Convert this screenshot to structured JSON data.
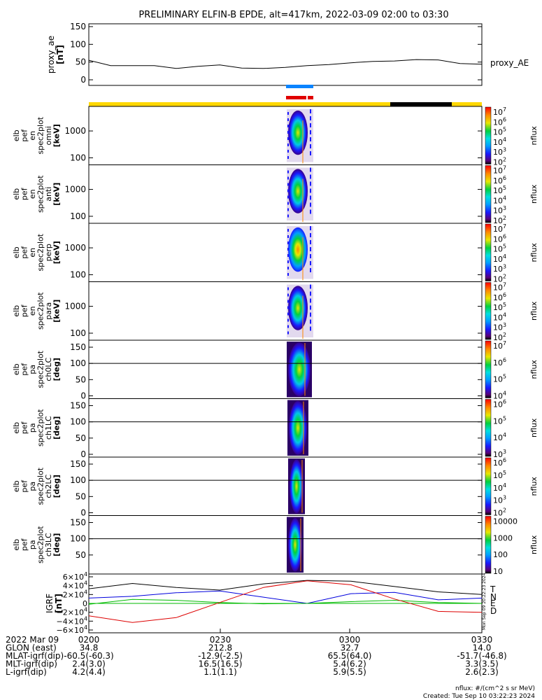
{
  "title": "PRELIMINARY ELFIN-B EPDE, alt=417km, 2022-03-09 02:00 to 03:30",
  "ae_panel": {
    "ylabel": [
      "proxy_ae",
      "[nT]"
    ],
    "series_label": "proxy_AE",
    "yticks": [
      "150",
      "100",
      "50",
      "0"
    ],
    "ylim": [
      0,
      150
    ]
  },
  "spec_panels": [
    {
      "ylabel": [
        "elb",
        "pef",
        "en",
        "spec2plot",
        "omni",
        "[keV]"
      ],
      "yticks": [
        "1000",
        "100"
      ],
      "kind": "energy"
    },
    {
      "ylabel": [
        "elb",
        "pef",
        "en",
        "spec2plot",
        "anti",
        "[keV]"
      ],
      "yticks": [
        "1000",
        "100"
      ],
      "kind": "energy"
    },
    {
      "ylabel": [
        "elb",
        "pef",
        "en",
        "spec2plot",
        "perp",
        "[keV]"
      ],
      "yticks": [
        "1000",
        "100"
      ],
      "kind": "energy"
    },
    {
      "ylabel": [
        "elb",
        "pef",
        "en",
        "spec2plot",
        "para",
        "[keV]"
      ],
      "yticks": [
        "1000",
        "100"
      ],
      "kind": "energy"
    },
    {
      "ylabel": [
        "elb",
        "pef",
        "pa",
        "spec2plot",
        "ch0LC",
        "[deg]"
      ],
      "yticks": [
        "150",
        "100",
        "50",
        "0"
      ],
      "kind": "pa"
    },
    {
      "ylabel": [
        "elb",
        "pef",
        "pa",
        "spec2plot",
        "ch1LC",
        "[deg]"
      ],
      "yticks": [
        "150",
        "100",
        "50",
        "0"
      ],
      "kind": "pa"
    },
    {
      "ylabel": [
        "elb",
        "pef",
        "pa",
        "spec2plot",
        "ch2LC",
        "[deg]"
      ],
      "yticks": [
        "150",
        "100",
        "50",
        "0"
      ],
      "kind": "pa"
    },
    {
      "ylabel": [
        "elb",
        "pef",
        "pa",
        "spec2plot",
        "ch3LC",
        "[deg]"
      ],
      "yticks": [
        "150",
        "100",
        "50"
      ],
      "kind": "pa"
    }
  ],
  "colorbars": [
    {
      "unit": "nflux",
      "labels": [
        "10^7",
        "10^6",
        "10^5",
        "10^4",
        "10^3",
        "10^2"
      ]
    },
    {
      "unit": "nflux",
      "labels": [
        "10^7",
        "10^6",
        "10^5",
        "10^4",
        "10^3",
        "10^2"
      ]
    },
    {
      "unit": "nflux",
      "labels": [
        "10^7",
        "10^6",
        "10^5",
        "10^4",
        "10^3",
        "10^2"
      ]
    },
    {
      "unit": "nflux",
      "labels": [
        "10^7",
        "10^6",
        "10^5",
        "10^4",
        "10^3",
        "10^2"
      ]
    },
    {
      "unit": "nflux",
      "labels": [
        "10^7",
        "10^6",
        "10^5",
        "10^4"
      ]
    },
    {
      "unit": "nflux",
      "labels": [
        "10^6",
        "10^5",
        "10^4",
        "10^3"
      ]
    },
    {
      "unit": "nflux",
      "labels": [
        "10^6",
        "10^5",
        "10^4",
        "10^3",
        "10^2"
      ]
    },
    {
      "unit": "nflux",
      "labels": [
        "10000",
        "1000",
        "100",
        "10"
      ]
    }
  ],
  "igrf_panel": {
    "ylabel": [
      "IGRF",
      "[nT]"
    ],
    "yticks": [
      "6×10^4",
      "4×10^4",
      "2×10^4",
      "0",
      "−2×10^4",
      "−4×10^4",
      "−6×10^4"
    ],
    "ylim": [
      -60000,
      60000
    ],
    "legend": [
      "T",
      "N",
      "E",
      "D"
    ],
    "colors": {
      "T": "#000000",
      "N": "#0000dd",
      "E": "#00bb00",
      "D": "#dd0000"
    },
    "side_stamp": "Mon Sep 09 20:22:23 2024"
  },
  "chart_data": [
    {
      "type": "line",
      "title": "PRELIMINARY ELFIN-B EPDE, alt=417km, 2022-03-09 02:00 to 03:30",
      "ylabel": "proxy_ae [nT]",
      "ylim": [
        0,
        150
      ],
      "series": [
        {
          "name": "proxy_AE",
          "x": [
            "02:00",
            "02:05",
            "02:10",
            "02:15",
            "02:20",
            "02:25",
            "02:30",
            "02:35",
            "02:40",
            "02:45",
            "02:50",
            "02:55",
            "03:00",
            "03:05",
            "03:10",
            "03:15",
            "03:20",
            "03:25",
            "03:30"
          ],
          "values": [
            55,
            40,
            40,
            40,
            32,
            38,
            42,
            33,
            32,
            35,
            40,
            43,
            48,
            52,
            53,
            57,
            56,
            46,
            44
          ]
        }
      ]
    },
    {
      "type": "line",
      "title": "IGRF",
      "ylabel": "IGRF [nT]",
      "ylim": [
        -60000,
        60000
      ],
      "series": [
        {
          "name": "T",
          "x": [
            "02:00",
            "02:10",
            "02:20",
            "02:30",
            "02:40",
            "02:50",
            "03:00",
            "03:10",
            "03:20",
            "03:30"
          ],
          "values": [
            33000,
            45000,
            36000,
            30000,
            44000,
            52000,
            50000,
            38000,
            26000,
            20000
          ]
        },
        {
          "name": "N",
          "x": [
            "02:00",
            "02:10",
            "02:20",
            "02:30",
            "02:40",
            "02:50",
            "03:00",
            "03:10",
            "03:20",
            "03:30"
          ],
          "values": [
            12000,
            16000,
            24000,
            28000,
            14000,
            0,
            22000,
            25000,
            8000,
            12000
          ]
        },
        {
          "name": "E",
          "x": [
            "02:00",
            "02:10",
            "02:20",
            "02:30",
            "02:40",
            "02:50",
            "03:00",
            "03:10",
            "03:20",
            "03:30"
          ],
          "values": [
            -2000,
            9000,
            7000,
            2000,
            -1000,
            0,
            4000,
            7000,
            2000,
            0
          ]
        },
        {
          "name": "D",
          "x": [
            "02:00",
            "02:10",
            "02:20",
            "02:30",
            "02:40",
            "02:50",
            "03:00",
            "03:10",
            "03:20",
            "03:30"
          ],
          "values": [
            -28000,
            -43000,
            -32000,
            2000,
            36000,
            51000,
            42000,
            10000,
            -18000,
            -20000
          ]
        }
      ]
    }
  ],
  "footer": {
    "rows": [
      {
        "label": "2022 Mar 09",
        "values": [
          "0200",
          "0230",
          "0300",
          "0330"
        ]
      },
      {
        "label": "GLON (east)",
        "values": [
          "34.8",
          "212.8",
          "32.7",
          "14.0"
        ]
      },
      {
        "label": "MLAT-igrf(dip)",
        "values": [
          "-60.5(-60.3)",
          "-12.9(-2.5)",
          "65.5(64.0)",
          "-51.7(-46.8)"
        ]
      },
      {
        "label": "MLT-igrf(dip)",
        "values": [
          "2.4(3.0)",
          "16.5(16.5)",
          "5.4(6.2)",
          "3.3(3.5)"
        ]
      },
      {
        "label": "L-igrf(dip)",
        "values": [
          "4.2(4.4)",
          "1.1(1.1)",
          "5.9(5.5)",
          "2.6(2.3)"
        ]
      }
    ],
    "note1": "nflux: #/(cm^2 s sr MeV)",
    "note2": "Created: Tue Sep 10 03:22:23 2024"
  }
}
